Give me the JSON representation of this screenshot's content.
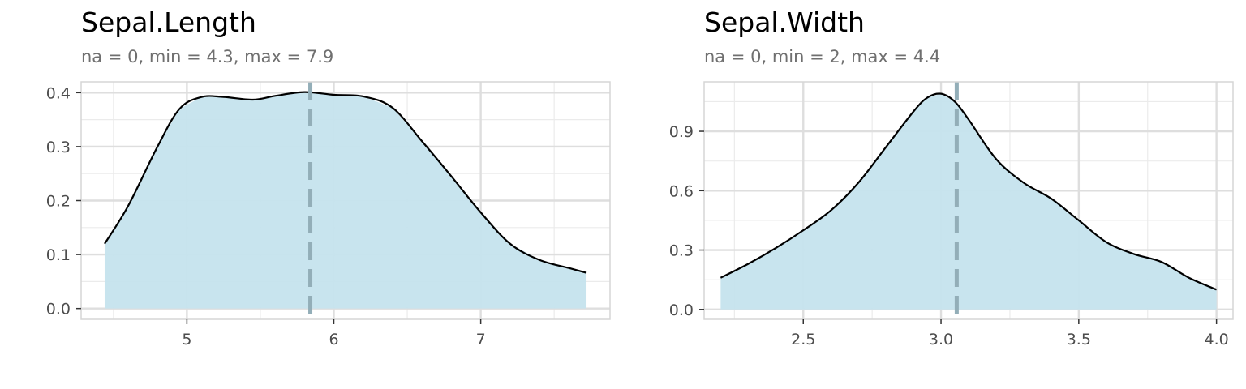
{
  "colors": {
    "fill": "#c5e3ed",
    "line": "#000000",
    "mean_line": "#93aeb8",
    "grid_major": "#dedede",
    "grid_minor": "#ebebeb",
    "border": "#d6d6d6",
    "subtitle": "#6f6f6f"
  },
  "chart_data": [
    {
      "type": "area",
      "title": "Sepal.Length",
      "subtitle": "na = 0, min = 4.3, max = 7.9",
      "xlim": [
        4.28,
        7.88
      ],
      "ylim": [
        -0.02,
        0.42
      ],
      "x_ticks": [
        5,
        6,
        7
      ],
      "x_tick_labels": [
        "5",
        "6",
        "7"
      ],
      "y_ticks": [
        0.0,
        0.1,
        0.2,
        0.3,
        0.4
      ],
      "y_tick_labels": [
        "0.0",
        "0.1",
        "0.2",
        "0.3",
        "0.4"
      ],
      "mean_line": 5.84,
      "grid": true,
      "x": [
        4.44,
        4.6,
        4.8,
        4.95,
        5.1,
        5.25,
        5.45,
        5.6,
        5.8,
        6.0,
        6.2,
        6.4,
        6.6,
        6.8,
        7.0,
        7.2,
        7.4,
        7.6,
        7.72
      ],
      "y": [
        0.12,
        0.19,
        0.3,
        0.37,
        0.392,
        0.392,
        0.387,
        0.394,
        0.401,
        0.396,
        0.393,
        0.372,
        0.31,
        0.245,
        0.178,
        0.12,
        0.09,
        0.075,
        0.066
      ]
    },
    {
      "type": "area",
      "title": "Sepal.Width",
      "subtitle": "na = 0, min = 2, max = 4.4",
      "xlim": [
        2.14,
        4.06
      ],
      "ylim": [
        -0.05,
        1.15
      ],
      "x_ticks": [
        2.5,
        3.0,
        3.5,
        4.0
      ],
      "x_tick_labels": [
        "2.5",
        "3.0",
        "3.5",
        "4.0"
      ],
      "y_ticks": [
        0.0,
        0.3,
        0.6,
        0.9
      ],
      "y_tick_labels": [
        "0.0",
        "0.3",
        "0.6",
        "0.9"
      ],
      "mean_line": 3.057,
      "grid": true,
      "x": [
        2.2,
        2.3,
        2.4,
        2.5,
        2.6,
        2.7,
        2.8,
        2.9,
        2.95,
        3.0,
        3.05,
        3.1,
        3.2,
        3.3,
        3.4,
        3.5,
        3.6,
        3.7,
        3.8,
        3.9,
        4.0
      ],
      "y": [
        0.16,
        0.23,
        0.31,
        0.4,
        0.5,
        0.64,
        0.82,
        1.0,
        1.07,
        1.09,
        1.05,
        0.96,
        0.76,
        0.64,
        0.56,
        0.45,
        0.34,
        0.28,
        0.24,
        0.16,
        0.1
      ]
    }
  ]
}
